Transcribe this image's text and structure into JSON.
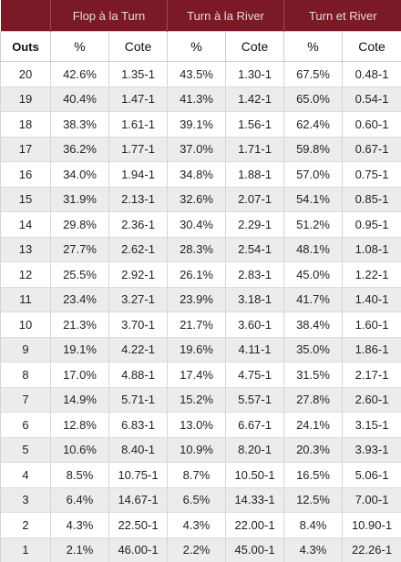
{
  "header": {
    "groups": [
      "Flop à la Turn",
      "Turn à la River",
      "Turn et River"
    ],
    "outs_label": "Outs",
    "pct_label": "%",
    "cote_label": "Cote"
  },
  "rows": [
    [
      "20",
      "42.6%",
      "1.35-1",
      "43.5%",
      "1.30-1",
      "67.5%",
      "0.48-1"
    ],
    [
      "19",
      "40.4%",
      "1.47-1",
      "41.3%",
      "1.42-1",
      "65.0%",
      "0.54-1"
    ],
    [
      "18",
      "38.3%",
      "1.61-1",
      "39.1%",
      "1.56-1",
      "62.4%",
      "0.60-1"
    ],
    [
      "17",
      "36.2%",
      "1.77-1",
      "37.0%",
      "1.71-1",
      "59.8%",
      "0.67-1"
    ],
    [
      "16",
      "34.0%",
      "1.94-1",
      "34.8%",
      "1.88-1",
      "57.0%",
      "0.75-1"
    ],
    [
      "15",
      "31.9%",
      "2.13-1",
      "32.6%",
      "2.07-1",
      "54.1%",
      "0.85-1"
    ],
    [
      "14",
      "29.8%",
      "2.36-1",
      "30.4%",
      "2.29-1",
      "51.2%",
      "0.95-1"
    ],
    [
      "13",
      "27.7%",
      "2.62-1",
      "28.3%",
      "2.54-1",
      "48.1%",
      "1.08-1"
    ],
    [
      "12",
      "25.5%",
      "2.92-1",
      "26.1%",
      "2.83-1",
      "45.0%",
      "1.22-1"
    ],
    [
      "11",
      "23.4%",
      "3.27-1",
      "23.9%",
      "3.18-1",
      "41.7%",
      "1.40-1"
    ],
    [
      "10",
      "21.3%",
      "3.70-1",
      "21.7%",
      "3.60-1",
      "38.4%",
      "1.60-1"
    ],
    [
      "9",
      "19.1%",
      "4.22-1",
      "19.6%",
      "4.11-1",
      "35.0%",
      "1.86-1"
    ],
    [
      "8",
      "17.0%",
      "4.88-1",
      "17.4%",
      "4.75-1",
      "31.5%",
      "2.17-1"
    ],
    [
      "7",
      "14.9%",
      "5.71-1",
      "15.2%",
      "5.57-1",
      "27.8%",
      "2.60-1"
    ],
    [
      "6",
      "12.8%",
      "6.83-1",
      "13.0%",
      "6.67-1",
      "24.1%",
      "3.15-1"
    ],
    [
      "5",
      "10.6%",
      "8.40-1",
      "10.9%",
      "8.20-1",
      "20.3%",
      "3.93-1"
    ],
    [
      "4",
      "8.5%",
      "10.75-1",
      "8.7%",
      "10.50-1",
      "16.5%",
      "5.06-1"
    ],
    [
      "3",
      "6.4%",
      "14.67-1",
      "6.5%",
      "14.33-1",
      "12.5%",
      "7.00-1"
    ],
    [
      "2",
      "4.3%",
      "22.50-1",
      "4.3%",
      "22.00-1",
      "8.4%",
      "10.90-1"
    ],
    [
      "1",
      "2.1%",
      "46.00-1",
      "2.2%",
      "45.00-1",
      "4.3%",
      "22.26-1"
    ]
  ]
}
